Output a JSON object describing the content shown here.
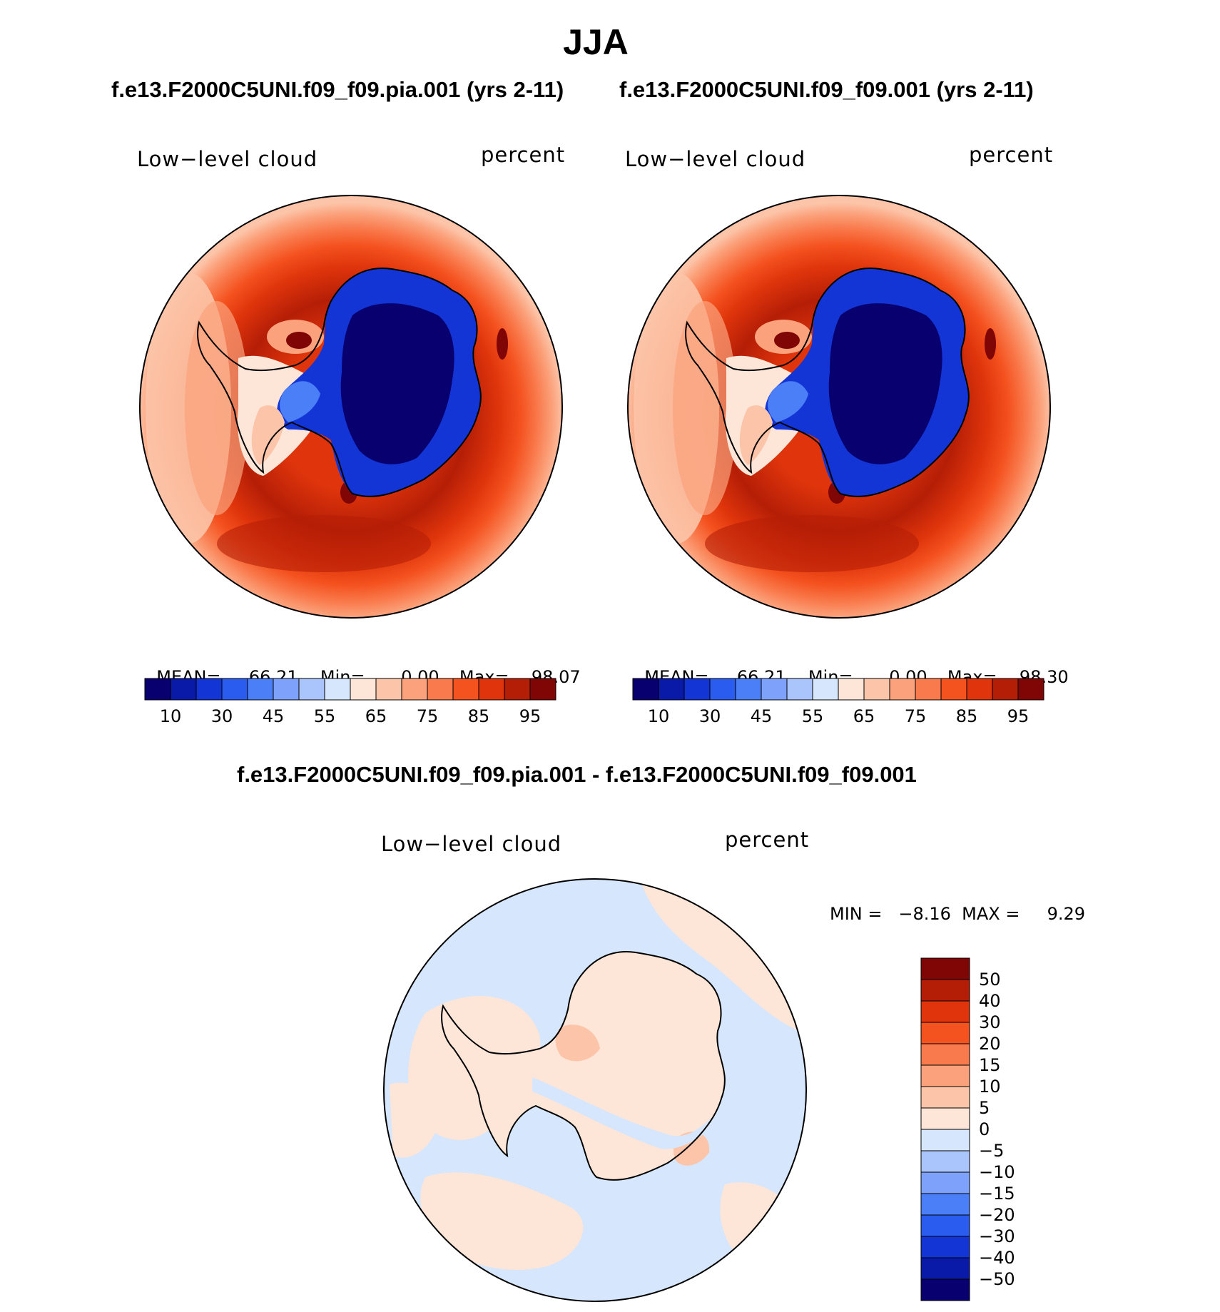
{
  "figure": {
    "title": "JJA"
  },
  "panels": [
    {
      "heading": "f.e13.F2000C5UNI.f09_f09.pia.001 (yrs 2-11)",
      "variable_label": "Low−level cloud",
      "units_label": "percent",
      "stats": {
        "mean_label": "MEAN=",
        "mean": "66.21",
        "min_label": "Min=",
        "min": "0.00",
        "max_label": "Max=",
        "max": "98.07"
      }
    },
    {
      "heading": "f.e13.F2000C5UNI.f09_f09.001 (yrs 2-11)",
      "variable_label": "Low−level cloud",
      "units_label": "percent",
      "stats": {
        "mean_label": "MEAN=",
        "mean": "66.21",
        "min_label": "Min=",
        "min": "0.00",
        "max_label": "Max=",
        "max": "98.30"
      }
    }
  ],
  "colorbar_top": {
    "colors": [
      "#08006e",
      "#0a1aa8",
      "#1335d6",
      "#2a5cf0",
      "#4a7ff7",
      "#7ea2fb",
      "#aac4fc",
      "#d6e6fc",
      "#fde6d8",
      "#fcc4a8",
      "#fba27c",
      "#f97a4c",
      "#f4521f",
      "#e0350c",
      "#b51e06",
      "#800505"
    ],
    "tick_labels": [
      "10",
      "30",
      "45",
      "55",
      "65",
      "75",
      "85",
      "95"
    ]
  },
  "difference_panel": {
    "heading": "f.e13.F2000C5UNI.f09_f09.pia.001 - f.e13.F2000C5UNI.f09_f09.001",
    "variable_label": "Low−level cloud",
    "units_label": "percent",
    "stats_text": "MIN =   −8.16  MAX =     9.29",
    "colorbar": {
      "colors_top_to_bottom": [
        "#800505",
        "#b51e06",
        "#e0350c",
        "#f4521f",
        "#f97a4c",
        "#fba27c",
        "#fcc4a8",
        "#fde6d8",
        "#d6e6fc",
        "#aac4fc",
        "#7ea2fb",
        "#4a7ff7",
        "#2a5cf0",
        "#1335d6",
        "#0a1aa8",
        "#08006e"
      ],
      "tick_labels": [
        "50",
        "40",
        "30",
        "20",
        "15",
        "10",
        "5",
        "0",
        "−5",
        "−10",
        "−15",
        "−20",
        "−30",
        "−40",
        "−50"
      ]
    }
  },
  "map_colors": {
    "outer_light": "#fcc4a8",
    "mid": "#f4521f",
    "deep": "#b51e06",
    "darkest": "#800505",
    "ice_dark": "#08006e",
    "ice_blue": "#1335d6",
    "diff_neg": "#d6e6fc",
    "diff_pos": "#fde6d8",
    "diff_pos2": "#fcc4a8"
  }
}
